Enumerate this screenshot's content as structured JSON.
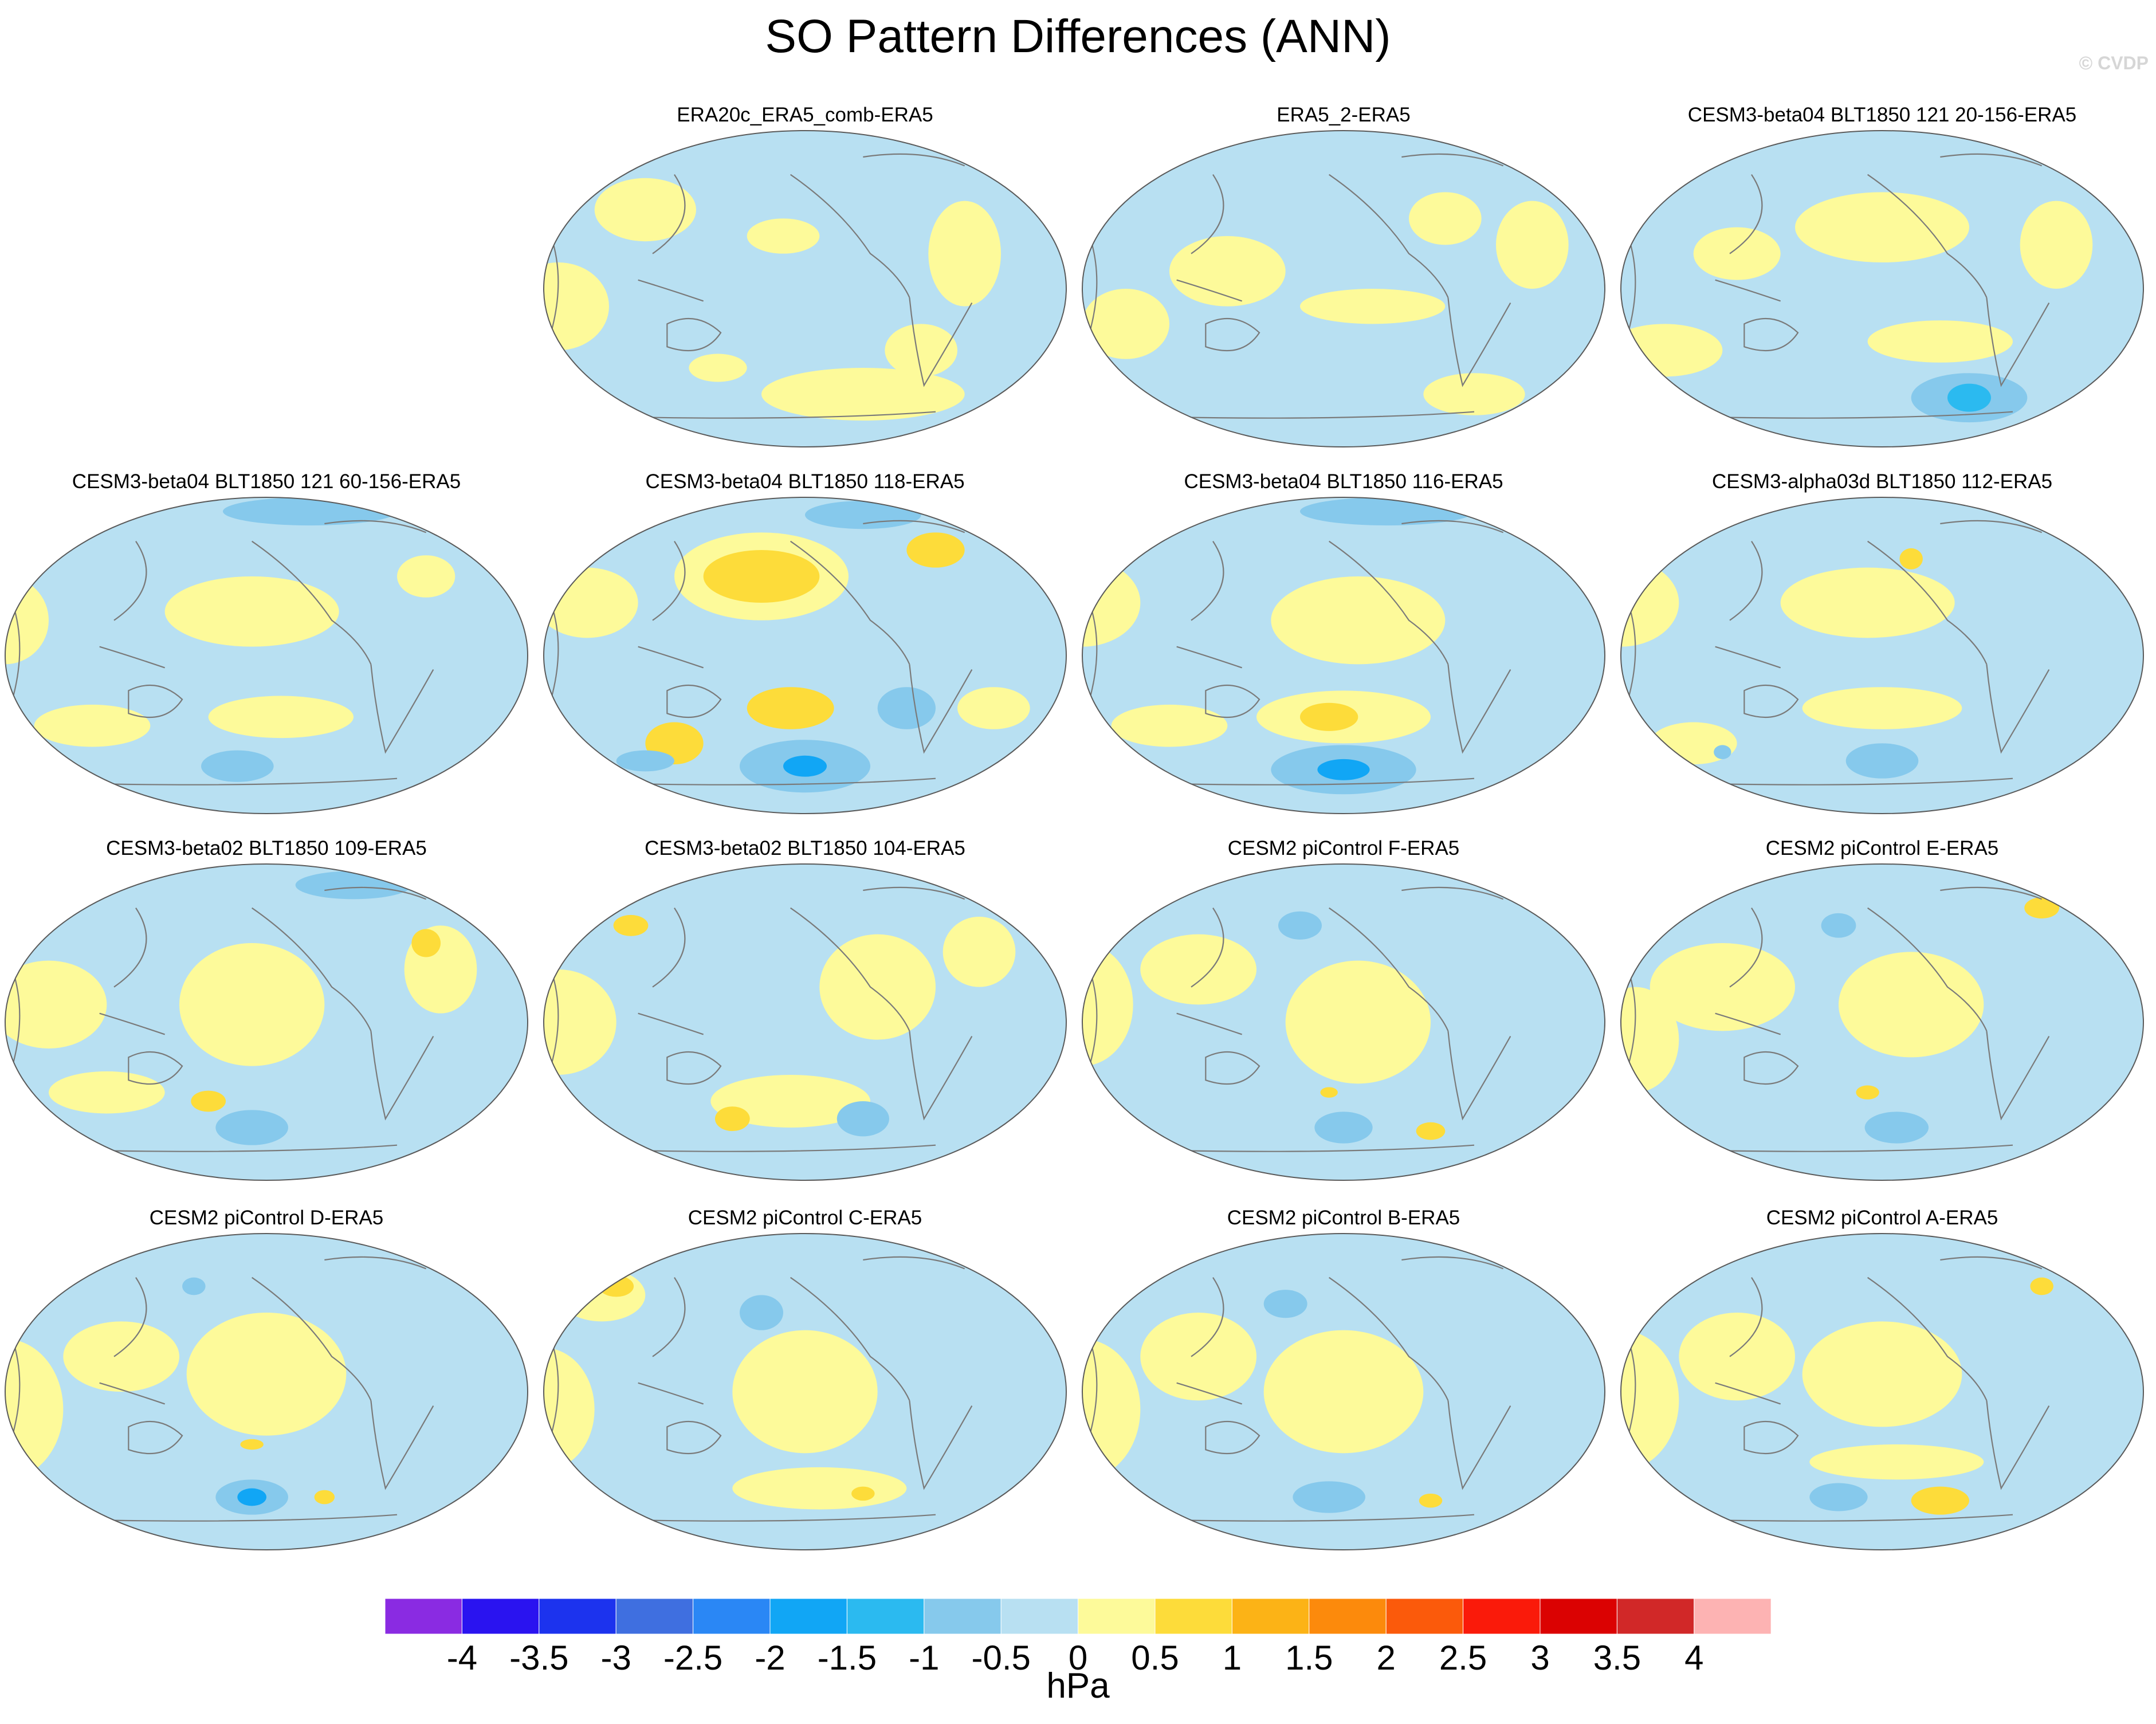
{
  "chart_data": {
    "type": "heatmap",
    "title": "SO Pattern Differences (ANN)",
    "copyright": "© CVDP",
    "projection": "global ellipse (Robinson-like), Pacific-centred",
    "panels": [
      {
        "title": "ERA20c_ERA5_comb-ERA5",
        "features": [
          {
            "lon": 195,
            "lat": 30,
            "rx": 25,
            "ry": 10,
            "v": 0.3
          },
          {
            "lon": 100,
            "lat": 45,
            "rx": 35,
            "ry": 18,
            "v": 0.3
          },
          {
            "lon": 320,
            "lat": 20,
            "rx": 25,
            "ry": 30,
            "v": 0.3
          },
          {
            "lon": 40,
            "lat": -10,
            "rx": 35,
            "ry": 25,
            "v": 0.3
          },
          {
            "lon": 250,
            "lat": -60,
            "rx": 70,
            "ry": 15,
            "v": 0.3
          },
          {
            "lon": 290,
            "lat": -35,
            "rx": 25,
            "ry": 15,
            "v": 0.3
          },
          {
            "lon": 150,
            "lat": -45,
            "rx": 20,
            "ry": 8,
            "v": 0.3
          }
        ]
      },
      {
        "title": "ERA5_2-ERA5",
        "features": [
          {
            "lon": 130,
            "lat": 10,
            "rx": 40,
            "ry": 20,
            "v": 0.3
          },
          {
            "lon": 230,
            "lat": -10,
            "rx": 50,
            "ry": 10,
            "v": 0.3
          },
          {
            "lon": 280,
            "lat": 40,
            "rx": 25,
            "ry": 15,
            "v": 0.3
          },
          {
            "lon": 340,
            "lat": 25,
            "rx": 25,
            "ry": 25,
            "v": 0.3
          },
          {
            "lon": 60,
            "lat": -20,
            "rx": 30,
            "ry": 20,
            "v": 0.3
          },
          {
            "lon": 300,
            "lat": -60,
            "rx": 35,
            "ry": 12,
            "v": 0.3
          },
          {
            "lon": 200,
            "lat": 50,
            "rx": 30,
            "ry": 10,
            "v": -0.3
          }
        ]
      },
      {
        "title": "CESM3-beta04 BLT1850 121 20-156-ERA5",
        "features": [
          {
            "lon": 210,
            "lat": 35,
            "rx": 60,
            "ry": 20,
            "v": 0.3
          },
          {
            "lon": 330,
            "lat": 25,
            "rx": 25,
            "ry": 25,
            "v": 0.3
          },
          {
            "lon": 110,
            "lat": 20,
            "rx": 30,
            "ry": 15,
            "v": 0.3
          },
          {
            "lon": 250,
            "lat": -30,
            "rx": 50,
            "ry": 12,
            "v": 0.3
          },
          {
            "lon": 60,
            "lat": -35,
            "rx": 40,
            "ry": 15,
            "v": 0.3
          },
          {
            "lon": 270,
            "lat": -62,
            "rx": 15,
            "ry": 8,
            "v": -1.2
          },
          {
            "lon": 270,
            "lat": -62,
            "rx": 40,
            "ry": 14,
            "v": -0.7
          }
        ]
      },
      {
        "title": "CESM3-beta04 BLT1850 121 60-156-ERA5",
        "features": [
          {
            "lon": 200,
            "lat": 25,
            "rx": 60,
            "ry": 20,
            "v": 0.3
          },
          {
            "lon": 30,
            "lat": 20,
            "rx": 30,
            "ry": 25,
            "v": 0.3
          },
          {
            "lon": 220,
            "lat": -35,
            "rx": 50,
            "ry": 12,
            "v": 0.3
          },
          {
            "lon": 90,
            "lat": -40,
            "rx": 40,
            "ry": 12,
            "v": 0.3
          },
          {
            "lon": 190,
            "lat": -63,
            "rx": 25,
            "ry": 9,
            "v": -0.7
          },
          {
            "lon": 240,
            "lat": 82,
            "rx": 60,
            "ry": 8,
            "v": -0.7
          },
          {
            "lon": 320,
            "lat": 45,
            "rx": 20,
            "ry": 12,
            "v": 0.3
          }
        ]
      },
      {
        "title": "CESM3-beta04 BLT1850 118-ERA5",
        "features": [
          {
            "lon": 180,
            "lat": 45,
            "rx": 40,
            "ry": 15,
            "v": 0.6
          },
          {
            "lon": 180,
            "lat": 45,
            "rx": 60,
            "ry": 25,
            "v": 0.3
          },
          {
            "lon": 300,
            "lat": 60,
            "rx": 20,
            "ry": 10,
            "v": 0.7
          },
          {
            "lon": 200,
            "lat": -30,
            "rx": 30,
            "ry": 12,
            "v": 0.6
          },
          {
            "lon": 120,
            "lat": -50,
            "rx": 20,
            "ry": 12,
            "v": 0.6
          },
          {
            "lon": 210,
            "lat": -63,
            "rx": 15,
            "ry": 6,
            "v": -1.7
          },
          {
            "lon": 210,
            "lat": -63,
            "rx": 45,
            "ry": 15,
            "v": -0.8
          },
          {
            "lon": 280,
            "lat": -30,
            "rx": 20,
            "ry": 12,
            "v": -0.8
          },
          {
            "lon": 100,
            "lat": -60,
            "rx": 20,
            "ry": 6,
            "v": -0.7
          },
          {
            "lon": 60,
            "lat": 30,
            "rx": 35,
            "ry": 20,
            "v": 0.3
          },
          {
            "lon": 340,
            "lat": -30,
            "rx": 25,
            "ry": 12,
            "v": 0.3
          },
          {
            "lon": 250,
            "lat": 80,
            "rx": 40,
            "ry": 8,
            "v": -0.7
          }
        ]
      },
      {
        "title": "CESM3-beta04 BLT1850 116-ERA5",
        "features": [
          {
            "lon": 220,
            "lat": 20,
            "rx": 60,
            "ry": 25,
            "v": 0.3
          },
          {
            "lon": 30,
            "lat": 30,
            "rx": 40,
            "ry": 25,
            "v": 0.3
          },
          {
            "lon": 200,
            "lat": -35,
            "rx": 20,
            "ry": 8,
            "v": 0.6
          },
          {
            "lon": 210,
            "lat": -35,
            "rx": 60,
            "ry": 15,
            "v": 0.3
          },
          {
            "lon": 210,
            "lat": -65,
            "rx": 18,
            "ry": 6,
            "v": -1.6
          },
          {
            "lon": 210,
            "lat": -65,
            "rx": 50,
            "ry": 14,
            "v": -0.8
          },
          {
            "lon": 240,
            "lat": 82,
            "rx": 60,
            "ry": 8,
            "v": -0.7
          },
          {
            "lon": 90,
            "lat": -40,
            "rx": 40,
            "ry": 12,
            "v": 0.3
          }
        ]
      },
      {
        "title": "CESM3-alpha03d BLT1850 112-ERA5",
        "features": [
          {
            "lon": 200,
            "lat": 30,
            "rx": 60,
            "ry": 20,
            "v": 0.3
          },
          {
            "lon": 30,
            "lat": 30,
            "rx": 40,
            "ry": 25,
            "v": 0.3
          },
          {
            "lon": 230,
            "lat": 55,
            "rx": 8,
            "ry": 6,
            "v": 0.6
          },
          {
            "lon": 210,
            "lat": -30,
            "rx": 55,
            "ry": 12,
            "v": 0.3
          },
          {
            "lon": 210,
            "lat": -60,
            "rx": 25,
            "ry": 10,
            "v": -0.8
          },
          {
            "lon": 80,
            "lat": -50,
            "rx": 30,
            "ry": 12,
            "v": 0.3
          },
          {
            "lon": 100,
            "lat": -55,
            "rx": 6,
            "ry": 4,
            "v": -0.8
          }
        ]
      },
      {
        "title": "CESM3-beta02 BLT1850 109-ERA5",
        "features": [
          {
            "lon": 200,
            "lat": 10,
            "rx": 50,
            "ry": 35,
            "v": 0.3
          },
          {
            "lon": 320,
            "lat": 45,
            "rx": 10,
            "ry": 8,
            "v": 0.7
          },
          {
            "lon": 330,
            "lat": 30,
            "rx": 25,
            "ry": 25,
            "v": 0.3
          },
          {
            "lon": 170,
            "lat": -45,
            "rx": 12,
            "ry": 6,
            "v": 0.7
          },
          {
            "lon": 200,
            "lat": -60,
            "rx": 25,
            "ry": 10,
            "v": -0.8
          },
          {
            "lon": 60,
            "lat": 10,
            "rx": 40,
            "ry": 25,
            "v": 0.3
          },
          {
            "lon": 100,
            "lat": -40,
            "rx": 40,
            "ry": 12,
            "v": 0.3
          },
          {
            "lon": 270,
            "lat": 78,
            "rx": 40,
            "ry": 8,
            "v": -0.7
          }
        ]
      },
      {
        "title": "CESM3-beta02 BLT1850 104-ERA5",
        "features": [
          {
            "lon": 90,
            "lat": 55,
            "rx": 12,
            "ry": 6,
            "v": 0.7
          },
          {
            "lon": 260,
            "lat": 20,
            "rx": 40,
            "ry": 30,
            "v": 0.3
          },
          {
            "lon": 40,
            "lat": 0,
            "rx": 40,
            "ry": 30,
            "v": 0.3
          },
          {
            "lon": 200,
            "lat": -45,
            "rx": 55,
            "ry": 15,
            "v": 0.3
          },
          {
            "lon": 160,
            "lat": -55,
            "rx": 12,
            "ry": 7,
            "v": 0.7
          },
          {
            "lon": 250,
            "lat": -55,
            "rx": 18,
            "ry": 10,
            "v": -0.8
          },
          {
            "lon": 330,
            "lat": 40,
            "rx": 25,
            "ry": 20,
            "v": 0.3
          }
        ]
      },
      {
        "title": "CESM2 piControl F-ERA5",
        "features": [
          {
            "lon": 180,
            "lat": 55,
            "rx": 15,
            "ry": 8,
            "v": -0.8
          },
          {
            "lon": 110,
            "lat": 30,
            "rx": 40,
            "ry": 20,
            "v": 0.3
          },
          {
            "lon": 220,
            "lat": 0,
            "rx": 50,
            "ry": 35,
            "v": 0.3
          },
          {
            "lon": 30,
            "lat": 10,
            "rx": 35,
            "ry": 35,
            "v": 0.3
          },
          {
            "lon": 210,
            "lat": -60,
            "rx": 20,
            "ry": 9,
            "v": -0.8
          },
          {
            "lon": 270,
            "lat": -62,
            "rx": 10,
            "ry": 5,
            "v": 0.7
          },
          {
            "lon": 200,
            "lat": -40,
            "rx": 6,
            "ry": 3,
            "v": 0.7
          }
        ]
      },
      {
        "title": "CESM2 piControl E-ERA5",
        "features": [
          {
            "lon": 180,
            "lat": 55,
            "rx": 12,
            "ry": 7,
            "v": -0.8
          },
          {
            "lon": 320,
            "lat": 65,
            "rx": 12,
            "ry": 6,
            "v": 0.7
          },
          {
            "lon": 100,
            "lat": 20,
            "rx": 50,
            "ry": 25,
            "v": 0.3
          },
          {
            "lon": 230,
            "lat": 10,
            "rx": 50,
            "ry": 30,
            "v": 0.3
          },
          {
            "lon": 220,
            "lat": -60,
            "rx": 22,
            "ry": 9,
            "v": -0.8
          },
          {
            "lon": 200,
            "lat": -40,
            "rx": 8,
            "ry": 4,
            "v": 0.7
          },
          {
            "lon": 40,
            "lat": -10,
            "rx": 30,
            "ry": 30,
            "v": 0.3
          }
        ]
      },
      {
        "title": "CESM2 piControl D-ERA5",
        "features": [
          {
            "lon": 200,
            "lat": -60,
            "rx": 10,
            "ry": 5,
            "v": -1.6
          },
          {
            "lon": 200,
            "lat": -60,
            "rx": 25,
            "ry": 10,
            "v": -0.8
          },
          {
            "lon": 250,
            "lat": -60,
            "rx": 7,
            "ry": 4,
            "v": 0.7
          },
          {
            "lon": 160,
            "lat": 60,
            "rx": 8,
            "ry": 5,
            "v": -0.7
          },
          {
            "lon": 110,
            "lat": 20,
            "rx": 40,
            "ry": 20,
            "v": 0.3
          },
          {
            "lon": 210,
            "lat": 10,
            "rx": 55,
            "ry": 35,
            "v": 0.3
          },
          {
            "lon": 30,
            "lat": -10,
            "rx": 40,
            "ry": 40,
            "v": 0.3
          },
          {
            "lon": 200,
            "lat": -30,
            "rx": 8,
            "ry": 3,
            "v": 0.7
          }
        ]
      },
      {
        "title": "CESM2 piControl C-ERA5",
        "features": [
          {
            "lon": 80,
            "lat": 60,
            "rx": 12,
            "ry": 6,
            "v": 0.7
          },
          {
            "lon": 70,
            "lat": 55,
            "rx": 30,
            "ry": 15,
            "v": 0.3
          },
          {
            "lon": 180,
            "lat": 45,
            "rx": 15,
            "ry": 10,
            "v": -0.8
          },
          {
            "lon": 210,
            "lat": 0,
            "rx": 50,
            "ry": 35,
            "v": 0.3
          },
          {
            "lon": 30,
            "lat": -10,
            "rx": 35,
            "ry": 35,
            "v": 0.3
          },
          {
            "lon": 220,
            "lat": -55,
            "rx": 60,
            "ry": 12,
            "v": 0.3
          },
          {
            "lon": 250,
            "lat": -58,
            "rx": 8,
            "ry": 4,
            "v": 0.7
          }
        ]
      },
      {
        "title": "CESM2 piControl B-ERA5",
        "features": [
          {
            "lon": 170,
            "lat": 50,
            "rx": 15,
            "ry": 8,
            "v": -0.8
          },
          {
            "lon": 110,
            "lat": 20,
            "rx": 40,
            "ry": 25,
            "v": 0.3
          },
          {
            "lon": 210,
            "lat": 0,
            "rx": 55,
            "ry": 35,
            "v": 0.3
          },
          {
            "lon": 30,
            "lat": -10,
            "rx": 40,
            "ry": 40,
            "v": 0.3
          },
          {
            "lon": 200,
            "lat": -60,
            "rx": 25,
            "ry": 9,
            "v": -0.8
          },
          {
            "lon": 270,
            "lat": -62,
            "rx": 8,
            "ry": 4,
            "v": 0.7
          }
        ]
      },
      {
        "title": "CESM2 piControl A-ERA5",
        "features": [
          {
            "lon": 320,
            "lat": 60,
            "rx": 8,
            "ry": 5,
            "v": 0.7
          },
          {
            "lon": 110,
            "lat": 20,
            "rx": 40,
            "ry": 25,
            "v": 0.3
          },
          {
            "lon": 210,
            "lat": 10,
            "rx": 55,
            "ry": 30,
            "v": 0.3
          },
          {
            "lon": 30,
            "lat": -5,
            "rx": 40,
            "ry": 40,
            "v": 0.3
          },
          {
            "lon": 250,
            "lat": -62,
            "rx": 20,
            "ry": 8,
            "v": 0.7
          },
          {
            "lon": 180,
            "lat": -60,
            "rx": 20,
            "ry": 8,
            "v": -0.7
          },
          {
            "lon": 220,
            "lat": -40,
            "rx": 60,
            "ry": 10,
            "v": 0.3
          }
        ]
      }
    ],
    "colorbar": {
      "label": "hPa",
      "levels": [
        -4,
        -3.5,
        -3,
        -2.5,
        -2,
        -1.5,
        -1,
        -0.5,
        0,
        0.5,
        1,
        1.5,
        2,
        2.5,
        3,
        3.5,
        4
      ],
      "tick_labels": [
        "-4",
        "-3.5",
        "-3",
        "-2.5",
        "-2",
        "-1.5",
        "-1",
        "-0.5",
        "0",
        "0.5",
        "1",
        "1.5",
        "2",
        "2.5",
        "3",
        "3.5",
        "4"
      ],
      "colors": [
        "#8a2be2",
        "#2a13f0",
        "#1c33ee",
        "#3f6fe0",
        "#2a87f5",
        "#11a6f5",
        "#2bbaf0",
        "#86c9ec",
        "#b8e0f2",
        "#fdfa9a",
        "#fddc3a",
        "#fcb316",
        "#fc8a0c",
        "#fb5a0b",
        "#fa1a0a",
        "#db0202",
        "#d12828",
        "#fdb3b3"
      ]
    }
  }
}
